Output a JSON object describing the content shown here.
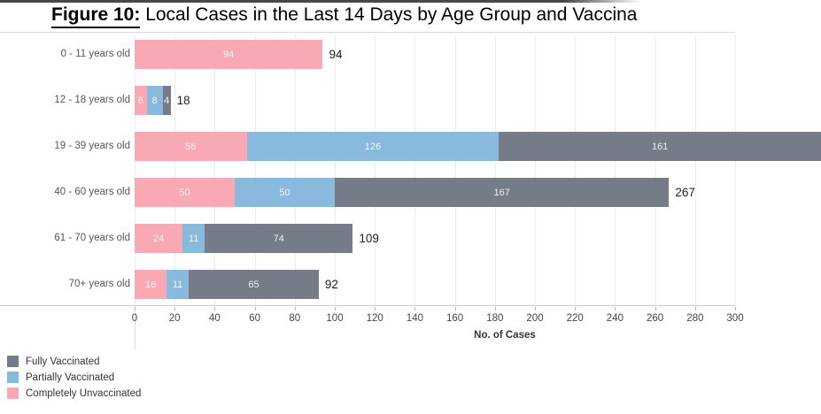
{
  "title": {
    "prefix": "Figure 10:",
    "rest": " Local Cases in the Last 14 Days by Age Group and Vaccina"
  },
  "chart_data": {
    "type": "bar",
    "orientation": "horizontal",
    "stacked": true,
    "title": "Figure 10: Local Cases in the Last 14 Days by Age Group and Vaccina",
    "categories": [
      "0 - 11 years old",
      "12 - 18 years old",
      "19 - 39 years old",
      "40 - 60 years old",
      "61 - 70 years old",
      "70+ years old"
    ],
    "series": [
      {
        "name": "Completely Unvaccinated",
        "color": "#f8a9b4",
        "values": [
          94,
          6,
          56,
          50,
          24,
          16
        ]
      },
      {
        "name": "Partially Vaccinated",
        "color": "#89b9dc",
        "values": [
          0,
          8,
          126,
          50,
          11,
          11
        ]
      },
      {
        "name": "Fully Vaccinated",
        "color": "#757c88",
        "values": [
          0,
          4,
          161,
          167,
          74,
          65
        ]
      }
    ],
    "total_labels": [
      "94",
      "18",
      "",
      "267",
      "109",
      "92"
    ],
    "xlabel": "No. of Cases",
    "x_ticks": [
      0,
      20,
      40,
      60,
      80,
      100,
      120,
      140,
      160,
      180,
      200,
      220,
      240,
      260,
      280,
      300
    ],
    "xlim": [
      0,
      300
    ],
    "grid": true,
    "legend_position": "bottom-left"
  },
  "legend": {
    "items": [
      {
        "label": "Fully Vaccinated",
        "color": "#757c88"
      },
      {
        "label": "Partially Vaccinated",
        "color": "#89b9dc"
      },
      {
        "label": "Completely Unvaccinated",
        "color": "#f8a9b4"
      }
    ]
  }
}
